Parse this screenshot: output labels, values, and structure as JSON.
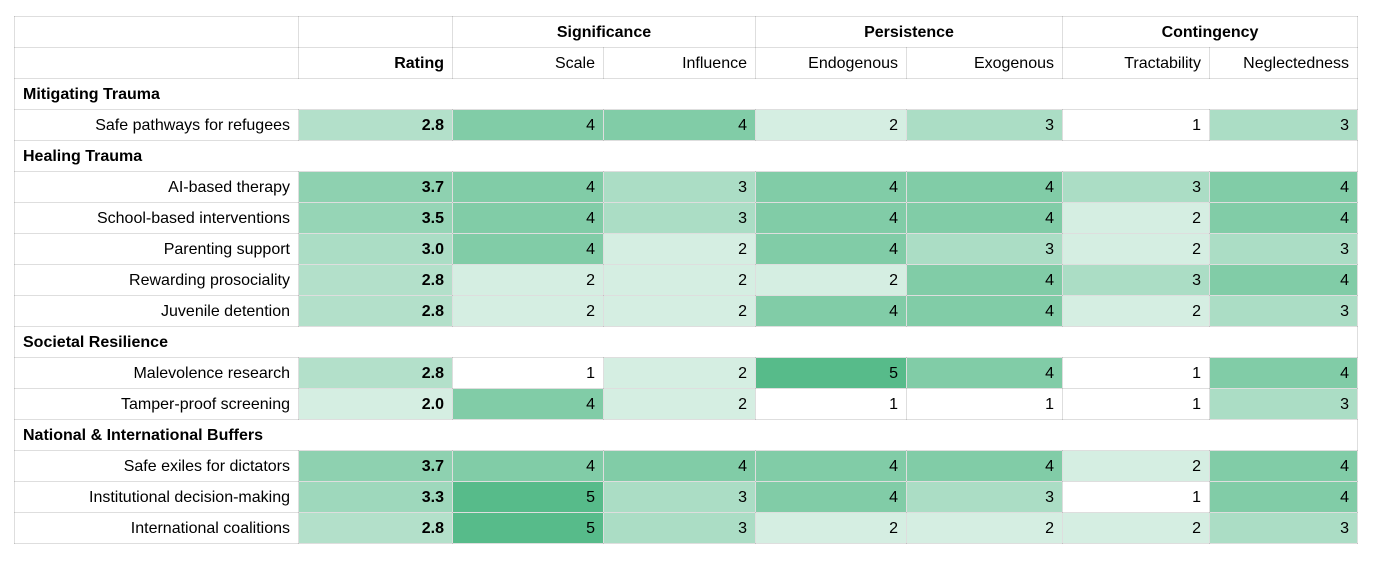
{
  "chart_data": {
    "type": "heatmap",
    "column_groups": [
      {
        "label": "Significance",
        "span": 2
      },
      {
        "label": "Persistence",
        "span": 2
      },
      {
        "label": "Contingency",
        "span": 2
      }
    ],
    "columns": [
      "Rating",
      "Scale",
      "Influence",
      "Endogenous",
      "Exogenous",
      "Tractability",
      "Neglectedness"
    ],
    "sections": [
      {
        "title": "Mitigating Trauma",
        "rows": [
          {
            "label": "Safe pathways for refugees",
            "rating": "2.8",
            "values": [
              4,
              4,
              2,
              3,
              1,
              3
            ]
          }
        ]
      },
      {
        "title": "Healing Trauma",
        "rows": [
          {
            "label": "AI-based therapy",
            "rating": "3.7",
            "values": [
              4,
              3,
              4,
              4,
              3,
              4
            ]
          },
          {
            "label": "School-based interventions",
            "rating": "3.5",
            "values": [
              4,
              3,
              4,
              4,
              2,
              4
            ]
          },
          {
            "label": "Parenting support",
            "rating": "3.0",
            "values": [
              4,
              2,
              4,
              3,
              2,
              3
            ]
          },
          {
            "label": "Rewarding prosociality",
            "rating": "2.8",
            "values": [
              2,
              2,
              2,
              4,
              3,
              4
            ]
          },
          {
            "label": "Juvenile detention",
            "rating": "2.8",
            "values": [
              2,
              2,
              4,
              4,
              2,
              3
            ]
          }
        ]
      },
      {
        "title": "Societal Resilience",
        "rows": [
          {
            "label": "Malevolence research",
            "rating": "2.8",
            "values": [
              1,
              2,
              5,
              4,
              1,
              4
            ]
          },
          {
            "label": "Tamper-proof screening",
            "rating": "2.0",
            "values": [
              4,
              2,
              1,
              1,
              1,
              3
            ]
          }
        ]
      },
      {
        "title": "National & International Buffers",
        "rows": [
          {
            "label": "Safe exiles for dictators",
            "rating": "3.7",
            "values": [
              4,
              4,
              4,
              4,
              2,
              4
            ]
          },
          {
            "label": "Institutional decision-making",
            "rating": "3.3",
            "values": [
              5,
              3,
              4,
              3,
              1,
              4
            ]
          },
          {
            "label": "International coalitions",
            "rating": "2.8",
            "values": [
              5,
              3,
              2,
              2,
              2,
              3
            ]
          }
        ]
      }
    ],
    "color_scale": {
      "min_value": 1,
      "max_value": 5,
      "min_color": "#ffffff",
      "max_color": "#57bb8a"
    }
  }
}
